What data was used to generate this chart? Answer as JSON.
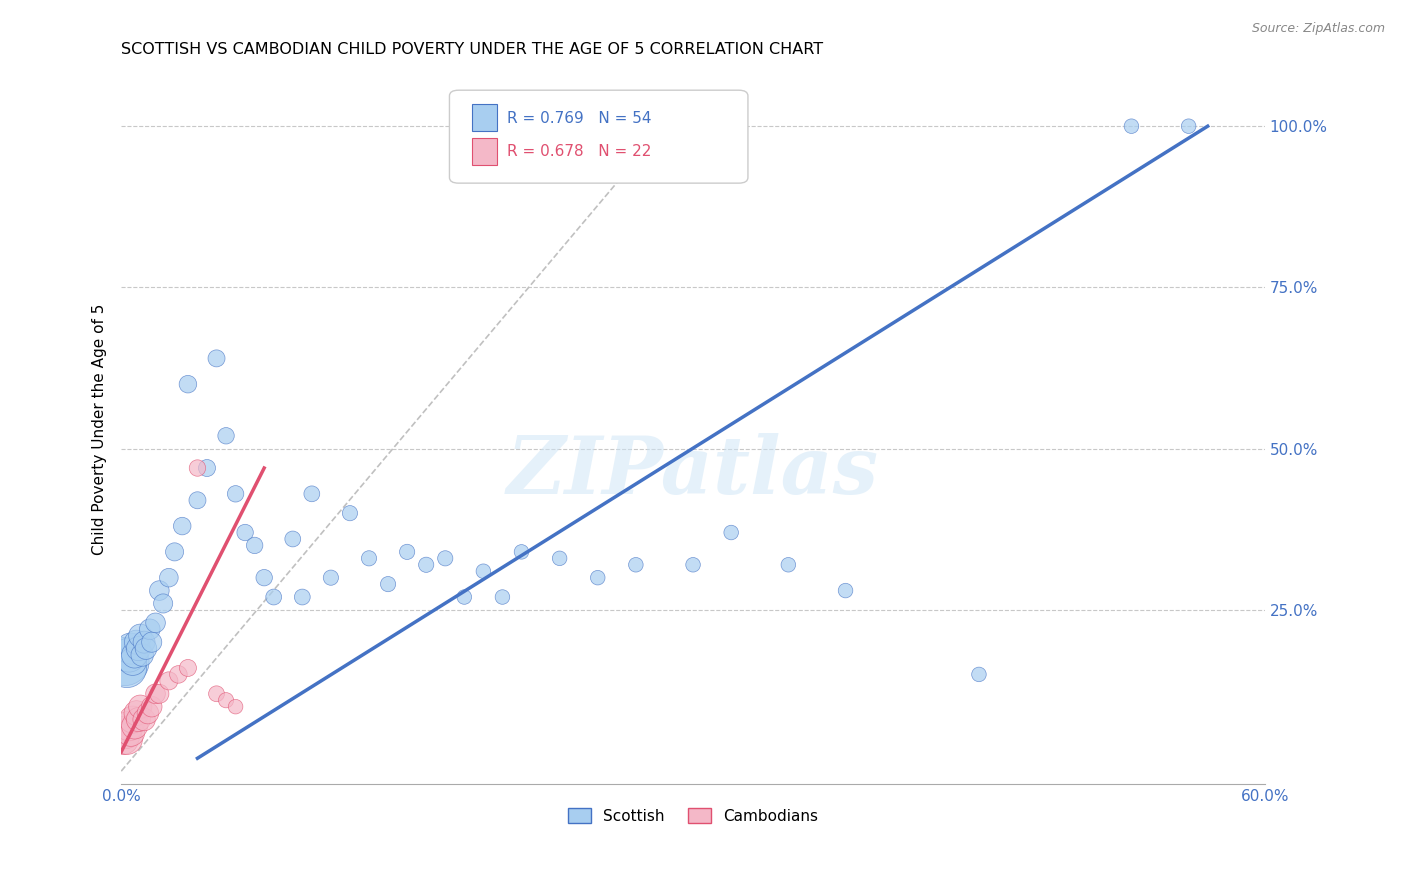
{
  "title": "SCOTTISH VS CAMBODIAN CHILD POVERTY UNDER THE AGE OF 5 CORRELATION CHART",
  "source": "Source: ZipAtlas.com",
  "ylabel": "Child Poverty Under the Age of 5",
  "xlim": [
    0.0,
    0.6
  ],
  "ylim": [
    -0.02,
    1.08
  ],
  "yticks_right": [
    0.25,
    0.5,
    0.75,
    1.0
  ],
  "ytick_right_labels": [
    "25.0%",
    "50.0%",
    "75.0%",
    "100.0%"
  ],
  "r_scottish": 0.769,
  "n_scottish": 54,
  "r_cambodian": 0.678,
  "n_cambodian": 22,
  "scottish_color": "#a8cef0",
  "cambodian_color": "#f4b8c8",
  "scottish_line_color": "#4472c4",
  "cambodian_line_color": "#e05070",
  "grid_color": "#c8c8c8",
  "watermark": "ZIPatlas",
  "scottish_line_x0": 0.04,
  "scottish_line_y0": 0.02,
  "scottish_line_x1": 0.57,
  "scottish_line_y1": 1.0,
  "cambodian_line_x0": 0.0,
  "cambodian_line_y0": 0.03,
  "cambodian_line_x1": 0.075,
  "cambodian_line_y1": 0.47,
  "diag_line_x0": 0.0,
  "diag_line_y0": 0.0,
  "diag_line_x1": 0.285,
  "diag_line_y1": 1.0,
  "scottish_x": [
    0.002,
    0.003,
    0.004,
    0.005,
    0.006,
    0.007,
    0.008,
    0.009,
    0.01,
    0.011,
    0.012,
    0.013,
    0.015,
    0.016,
    0.018,
    0.02,
    0.022,
    0.025,
    0.028,
    0.032,
    0.035,
    0.04,
    0.045,
    0.05,
    0.055,
    0.06,
    0.065,
    0.07,
    0.075,
    0.08,
    0.09,
    0.095,
    0.1,
    0.11,
    0.12,
    0.13,
    0.14,
    0.15,
    0.16,
    0.17,
    0.18,
    0.19,
    0.2,
    0.21,
    0.23,
    0.25,
    0.27,
    0.3,
    0.32,
    0.35,
    0.38,
    0.45,
    0.53,
    0.56
  ],
  "scottish_y": [
    0.17,
    0.16,
    0.18,
    0.19,
    0.17,
    0.18,
    0.2,
    0.19,
    0.21,
    0.18,
    0.2,
    0.19,
    0.22,
    0.2,
    0.23,
    0.28,
    0.26,
    0.3,
    0.34,
    0.38,
    0.6,
    0.42,
    0.47,
    0.64,
    0.52,
    0.43,
    0.37,
    0.35,
    0.3,
    0.27,
    0.36,
    0.27,
    0.43,
    0.3,
    0.4,
    0.33,
    0.29,
    0.34,
    0.32,
    0.33,
    0.27,
    0.31,
    0.27,
    0.34,
    0.33,
    0.3,
    0.32,
    0.32,
    0.37,
    0.32,
    0.28,
    0.15,
    1.0,
    1.0
  ],
  "scottish_sizes": [
    1200,
    800,
    600,
    500,
    400,
    350,
    300,
    300,
    280,
    260,
    250,
    240,
    220,
    210,
    200,
    200,
    190,
    180,
    170,
    160,
    160,
    150,
    150,
    150,
    140,
    140,
    140,
    140,
    140,
    130,
    130,
    130,
    130,
    120,
    120,
    120,
    120,
    120,
    120,
    120,
    110,
    110,
    110,
    110,
    110,
    110,
    110,
    110,
    110,
    110,
    110,
    110,
    110,
    110
  ],
  "cambodian_x": [
    0.001,
    0.002,
    0.003,
    0.004,
    0.005,
    0.006,
    0.007,
    0.008,
    0.009,
    0.01,
    0.012,
    0.014,
    0.016,
    0.018,
    0.02,
    0.025,
    0.03,
    0.035,
    0.04,
    0.05,
    0.055,
    0.06
  ],
  "cambodian_y": [
    0.05,
    0.06,
    0.05,
    0.07,
    0.06,
    0.08,
    0.07,
    0.09,
    0.08,
    0.1,
    0.08,
    0.09,
    0.1,
    0.12,
    0.12,
    0.14,
    0.15,
    0.16,
    0.47,
    0.12,
    0.11,
    0.1
  ],
  "cambodian_sizes": [
    500,
    550,
    500,
    450,
    400,
    380,
    350,
    320,
    300,
    280,
    260,
    240,
    220,
    200,
    190,
    170,
    160,
    150,
    140,
    130,
    120,
    110
  ]
}
